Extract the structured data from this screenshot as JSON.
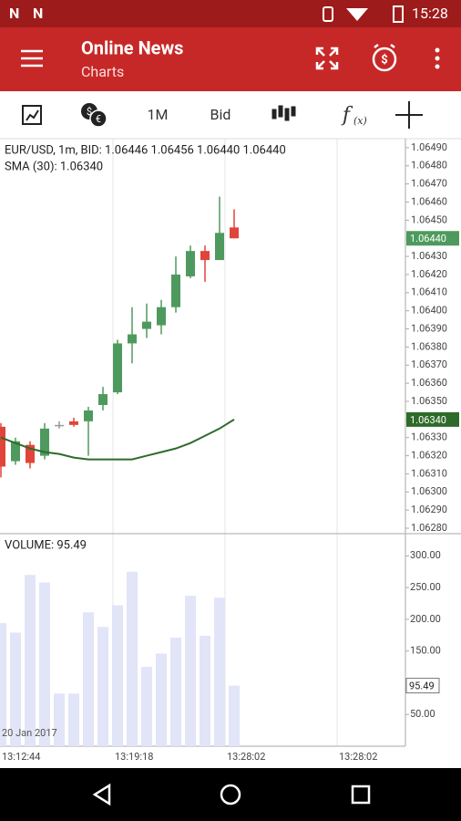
{
  "status_bar": {
    "time": "15:28"
  },
  "app_bar": {
    "title": "Online News",
    "subtitle": "Charts"
  },
  "toolbar": {
    "period": "1M",
    "price_type": "Bid"
  },
  "chart_data": [
    {
      "type": "candlestick",
      "title": "EUR/USD, 1m, BID: 1.06446 1.06456 1.06440 1.06440",
      "subtitle": "SMA (30): 1.06340",
      "open": [
        1.06336,
        1.06317,
        1.06326,
        1.0632,
        1.06337,
        1.06339,
        1.06339,
        1.06348,
        1.06355,
        1.06382,
        1.0639,
        1.06392,
        1.06402,
        1.06419,
        1.06433,
        1.06428,
        1.06446
      ],
      "high": [
        1.06338,
        1.0633,
        1.06328,
        1.06338,
        1.06339,
        1.06341,
        1.06347,
        1.06358,
        1.06384,
        1.06402,
        1.06404,
        1.06406,
        1.0643,
        1.06436,
        1.06436,
        1.06463,
        1.06456
      ],
      "low": [
        1.06308,
        1.06315,
        1.06313,
        1.06318,
        1.06335,
        1.06336,
        1.0632,
        1.06345,
        1.06354,
        1.06371,
        1.06385,
        1.06387,
        1.06399,
        1.06418,
        1.06416,
        1.06428,
        1.0644
      ],
      "close": [
        1.06314,
        1.06328,
        1.06316,
        1.06335,
        1.06337,
        1.06337,
        1.06345,
        1.06354,
        1.06382,
        1.06387,
        1.06394,
        1.06402,
        1.0642,
        1.06433,
        1.06428,
        1.06443,
        1.0644
      ],
      "up_color": "#4e9a5e",
      "down_color": "#e0443a",
      "flat_color": "#999999",
      "sma_values": [
        1.0633,
        1.06327,
        1.06324,
        1.06322,
        1.06321,
        1.06319,
        1.06318,
        1.06318,
        1.06318,
        1.06318,
        1.0632,
        1.06322,
        1.06324,
        1.06327,
        1.06331,
        1.06335,
        1.0634
      ],
      "sma_color": "#2e6b2a",
      "last_price": {
        "value": 1.0644,
        "label": "1.06440",
        "color": "#4e9a5e"
      },
      "sma_last": {
        "value": 1.0634,
        "label": "1.06340",
        "color": "#2e6b2a"
      },
      "ylim": [
        1.06277,
        1.06495
      ],
      "yticks": [
        {
          "value": 1.0649,
          "label": "1.06490"
        },
        {
          "value": 1.0648,
          "label": "1.06480"
        },
        {
          "value": 1.0647,
          "label": "1.06470"
        },
        {
          "value": 1.0646,
          "label": "1.06460"
        },
        {
          "value": 1.0645,
          "label": "1.06450"
        },
        {
          "value": 1.0644,
          "label": "1.06440"
        },
        {
          "value": 1.0643,
          "label": "1.06430"
        },
        {
          "value": 1.0642,
          "label": "1.06420"
        },
        {
          "value": 1.0641,
          "label": "1.06410"
        },
        {
          "value": 1.064,
          "label": "1.06400"
        },
        {
          "value": 1.0639,
          "label": "1.06390"
        },
        {
          "value": 1.0638,
          "label": "1.06380"
        },
        {
          "value": 1.0637,
          "label": "1.06370"
        },
        {
          "value": 1.0636,
          "label": "1.06360"
        },
        {
          "value": 1.0635,
          "label": "1.06350"
        },
        {
          "value": 1.0634,
          "label": "1.06340"
        },
        {
          "value": 1.0633,
          "label": "1.06330"
        },
        {
          "value": 1.0632,
          "label": "1.06320"
        },
        {
          "value": 1.0631,
          "label": "1.06310"
        },
        {
          "value": 1.063,
          "label": "1.06300"
        },
        {
          "value": 1.0629,
          "label": "1.06290"
        },
        {
          "value": 1.0628,
          "label": "1.06280"
        }
      ]
    },
    {
      "type": "bar",
      "title": "VOLUME: 95.49",
      "values": [
        194,
        179,
        270,
        258,
        83,
        83,
        211,
        188,
        222,
        275,
        125,
        146,
        171,
        237,
        174,
        234,
        95.49
      ],
      "color": "#e2e4f8",
      "last_label": {
        "value": 95.49,
        "label": "95.49"
      },
      "date": "20 Jan 2017",
      "x_labels": [
        "13:12:44",
        "13:19:18",
        "13:28:02",
        "13:28:02"
      ],
      "ylim": [
        0,
        335
      ],
      "yticks": [
        {
          "value": 300,
          "label": "300.00"
        },
        {
          "value": 250,
          "label": "250.00"
        },
        {
          "value": 200,
          "label": "200.00"
        },
        {
          "value": 150,
          "label": "150.00"
        },
        {
          "value": 50,
          "label": "50.00"
        }
      ]
    }
  ]
}
